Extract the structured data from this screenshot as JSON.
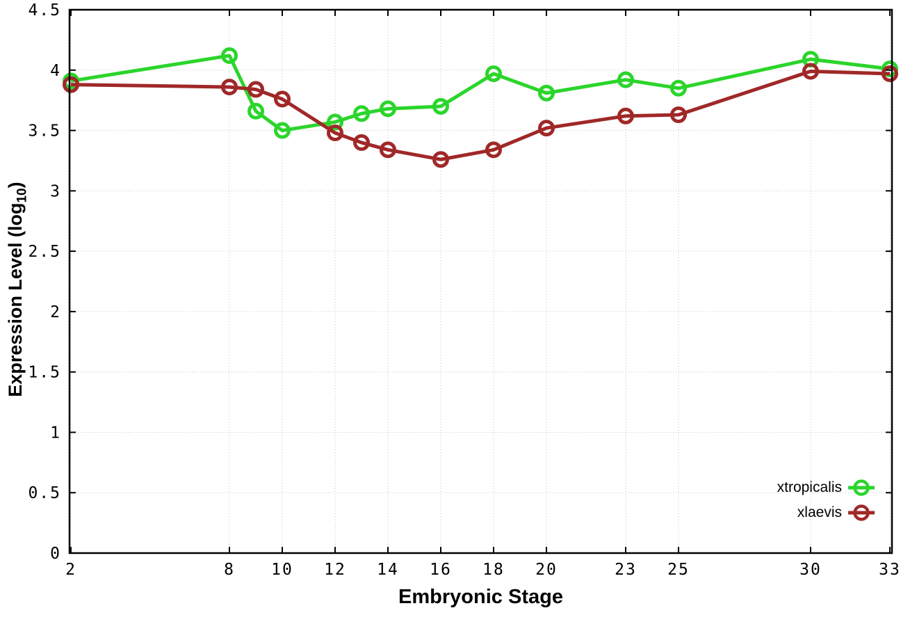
{
  "figure": {
    "background": "#ffffff",
    "border_color": "#000000",
    "grid_color": "#c3c3c3"
  },
  "chart_data": {
    "type": "line",
    "title": "",
    "xlabel": "Embryonic Stage",
    "ylabel": "Expression Level (log10)",
    "ylabel_parts": {
      "main": "Expression Level (log",
      "sub": "10",
      "close": ")"
    },
    "x": [
      2,
      8,
      9,
      10,
      12,
      13,
      14,
      16,
      18,
      20,
      23,
      25,
      30,
      33
    ],
    "series": [
      {
        "name": "xtropicalis",
        "color": "#2bd52b",
        "values": [
          3.91,
          4.12,
          3.66,
          3.5,
          3.57,
          3.64,
          3.68,
          3.7,
          3.97,
          3.81,
          3.92,
          3.85,
          4.09,
          4.01
        ]
      },
      {
        "name": "xlaevis",
        "color": "#a02828",
        "values": [
          3.88,
          3.86,
          3.84,
          3.76,
          3.48,
          3.4,
          3.34,
          3.26,
          3.34,
          3.52,
          3.62,
          3.63,
          3.99,
          3.97
        ]
      }
    ],
    "xticks": {
      "values": [
        2,
        8,
        10,
        12,
        14,
        16,
        18,
        20,
        23,
        25,
        30,
        33
      ],
      "labels": [
        "2",
        "8",
        "10",
        "12",
        "14",
        "16",
        "18",
        "20",
        "23",
        "25",
        "30",
        "33"
      ]
    },
    "yticks": {
      "values": [
        0,
        0.5,
        1,
        1.5,
        2,
        2.5,
        3,
        3.5,
        4,
        4.5
      ],
      "labels": [
        "0",
        "0.5",
        "1",
        "1.5",
        "2",
        "2.5",
        "3",
        "3.5",
        "4",
        "4.5"
      ]
    },
    "xlim": [
      1.947,
      33.08
    ],
    "ylim": [
      0,
      4.5
    ],
    "grid": true,
    "legend_position": "inside-bottom-right"
  }
}
